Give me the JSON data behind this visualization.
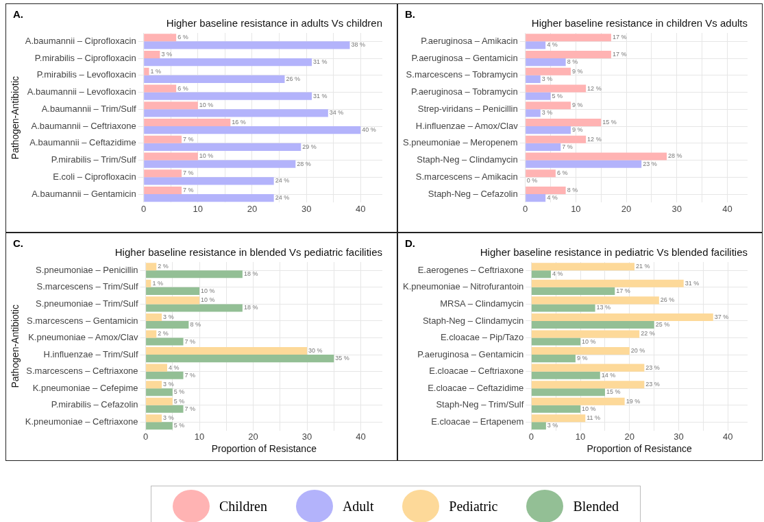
{
  "chart_data": [
    {
      "type": "bar",
      "orientation": "horizontal",
      "title": "Higher baseline resistance in adults Vs children",
      "ylabel": "Pathogen-Antibiotic",
      "annotations": [
        "A."
      ],
      "legend": "bottom",
      "grid": true,
      "categories": [
        "A.baumannii – Ciprofloxacin",
        "P.mirabilis – Ciprofloxacin",
        "P.mirabilis – Levofloxacin",
        "A.baumannii – Levofloxacin",
        "A.baumannii – Trim/Sulf",
        "A.baumannii – Ceftriaxone",
        "A.baumannii – Ceftazidime",
        "P.mirabilis – Trim/Sulf",
        "E.coli – Ciprofloxacin",
        "A.baumannii – Gentamicin"
      ],
      "series": [
        {
          "name": "Children",
          "color": "#ffb3b3",
          "values": [
            6,
            3,
            1,
            6,
            10,
            16,
            7,
            10,
            7,
            7
          ],
          "value_labels": [
            "6 %",
            "3 %",
            "1 %",
            "6 %",
            "10 %",
            "16 %",
            "7 %",
            "10 %",
            "7 %",
            "7 %"
          ]
        },
        {
          "name": "Adult",
          "color": "#b3b3fb",
          "values": [
            38,
            31,
            26,
            31,
            34,
            40,
            29,
            28,
            24,
            24
          ],
          "value_labels": [
            "38 %",
            "31 %",
            "26 %",
            "31 %",
            "34 %",
            "40 %",
            "29 %",
            "28 %",
            "24 %",
            "24 %"
          ]
        }
      ],
      "xlim": [
        0,
        44
      ],
      "xticks": [
        0,
        {
          "value": 5,
          "label": null
        },
        10,
        {
          "value": 15,
          "label": null
        },
        20,
        {
          "value": 25,
          "label": null
        },
        30,
        {
          "value": 35,
          "label": null
        },
        40
      ]
    },
    {
      "type": "bar",
      "orientation": "horizontal",
      "title": "Higher baseline resistance in children Vs adults",
      "annotations": [
        "B."
      ],
      "grid": true,
      "categories": [
        "P.aeruginosa – Amikacin",
        "P.aeruginosa – Gentamicin",
        "S.marcescens – Tobramycin",
        "P.aeruginosa – Tobramycin",
        "Strep-viridans – Penicillin",
        "H.influenzae – Amox/Clav",
        "S.pneumoniae – Meropenem",
        "Staph-Neg – Clindamycin",
        "S.marcescens – Amikacin",
        "Staph-Neg – Cefazolin"
      ],
      "series": [
        {
          "color": "#ffb3b3",
          "values": [
            17,
            17,
            9,
            12,
            9,
            15,
            12,
            28,
            6,
            8
          ],
          "value_labels": [
            "17 %",
            "17 %",
            "9 %",
            "12 %",
            "9 %",
            "15 %",
            "12 %",
            "28 %",
            "6 %",
            "8 %"
          ]
        },
        {
          "color": "#b3b3fb",
          "values": [
            4,
            8,
            3,
            5,
            3,
            9,
            7,
            23,
            0,
            4
          ],
          "value_labels": [
            "4 %",
            "8 %",
            "3 %",
            "5 %",
            "3 %",
            "9 %",
            "7 %",
            "23 %",
            "0 %",
            "4 %"
          ]
        }
      ],
      "xlim": [
        0,
        44
      ],
      "xticks": [
        0,
        {
          "value": 5,
          "label": null
        },
        10,
        {
          "value": 15,
          "label": null
        },
        20,
        {
          "value": 25,
          "label": null
        },
        30,
        {
          "value": 35,
          "label": null
        },
        40
      ]
    },
    {
      "type": "bar",
      "orientation": "horizontal",
      "title": "Higher baseline resistance in blended Vs pediatric facilities",
      "ylabel": "Pathogen-Antibiotic",
      "xlabel": "Proportion of Resistance",
      "annotations": [
        "C."
      ],
      "legend": "bottom",
      "grid": true,
      "categories": [
        "S.pneumoniae – Penicillin",
        "S.marcescens – Trim/Sulf",
        "S.pneumoniae – Trim/Sulf",
        "S.marcescens – Gentamicin",
        "K.pneumoniae – Amox/Clav",
        "H.influenzae – Trim/Sulf",
        "S.marcescens – Ceftriaxone",
        "K.pneumoniae – Cefepime",
        "P.mirabilis – Cefazolin",
        "K.pneumoniae – Ceftriaxone"
      ],
      "series": [
        {
          "name": "Pediatric",
          "color": "#fdd999",
          "values": [
            2,
            1,
            10,
            3,
            2,
            30,
            4,
            3,
            5,
            3
          ],
          "value_labels": [
            "2 %",
            "1 %",
            "10 %",
            "3 %",
            "2 %",
            "30 %",
            "4 %",
            "3 %",
            "5 %",
            "3 %"
          ]
        },
        {
          "name": "Blended",
          "color": "#93bf95",
          "values": [
            18,
            10,
            18,
            8,
            7,
            35,
            7,
            5,
            7,
            5
          ],
          "value_labels": [
            "18 %",
            "10 %",
            "18 %",
            "8 %",
            "7 %",
            "35 %",
            "7 %",
            "5 %",
            "7 %",
            "5 %"
          ]
        }
      ],
      "xlim": [
        0,
        44
      ],
      "xticks": [
        0,
        {
          "value": 5,
          "label": null
        },
        10,
        {
          "value": 15,
          "label": null
        },
        20,
        {
          "value": 25,
          "label": null
        },
        30,
        {
          "value": 35,
          "label": null
        },
        40
      ]
    },
    {
      "type": "bar",
      "orientation": "horizontal",
      "title": "Higher baseline resistance in pediatric Vs blended facilities",
      "xlabel": "Proportion of Resistance",
      "annotations": [
        "D."
      ],
      "grid": true,
      "categories": [
        "E.aerogenes – Ceftriaxone",
        "K.pneumoniae – Nitrofurantoin",
        "MRSA – Clindamycin",
        "Staph-Neg – Clindamycin",
        "E.cloacae – Pip/Tazo",
        "P.aeruginosa – Gentamicin",
        "E.cloacae – Ceftriaxone",
        "E.cloacae – Ceftazidime",
        "Staph-Neg – Trim/Sulf",
        "E.cloacae – Ertapenem"
      ],
      "series": [
        {
          "color": "#fdd999",
          "values": [
            21,
            31,
            26,
            37,
            22,
            20,
            23,
            23,
            19,
            11
          ],
          "value_labels": [
            "21 %",
            "31 %",
            "26 %",
            "37 %",
            "22 %",
            "20 %",
            "23 %",
            "23 %",
            "19 %",
            "11 %"
          ]
        },
        {
          "color": "#93bf95",
          "values": [
            4,
            17,
            13,
            25,
            10,
            9,
            14,
            15,
            10,
            3
          ],
          "value_labels": [
            "4 %",
            "17 %",
            "13 %",
            "25 %",
            "10 %",
            "9 %",
            "14 %",
            "15 %",
            "10 %",
            "3 %"
          ]
        }
      ],
      "xlim": [
        0,
        44
      ],
      "xticks": [
        0,
        {
          "value": 5,
          "label": null
        },
        10,
        {
          "value": 15,
          "label": null
        },
        20,
        {
          "value": 25,
          "label": null
        },
        30,
        {
          "value": 35,
          "label": null
        },
        40
      ]
    }
  ]
}
